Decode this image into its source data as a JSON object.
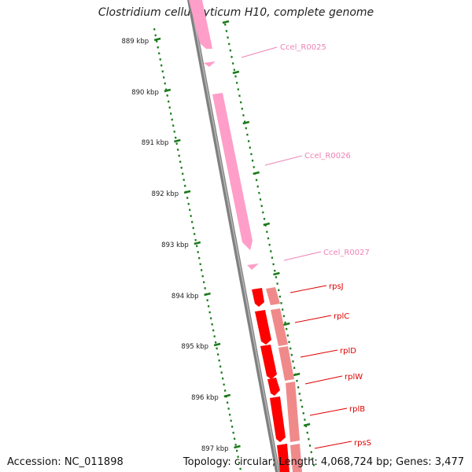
{
  "title": "Clostridium cellulolyticum H10, complete genome",
  "footer": {
    "accession": "Accession: NC_011898",
    "summary": "Topology: circular; Length: 4,068,724 bp; Genes: 3,477"
  },
  "ruler_ticks": [
    "889 kbp",
    "890 kbp",
    "891 kbp",
    "892 kbp",
    "893 kbp",
    "894 kbp",
    "895 kbp",
    "896 kbp",
    "897 kbp"
  ],
  "colors": {
    "rna_gene": "#ff9ec9",
    "protein_gene": "#ff0000",
    "cds": "#f08a8a",
    "backbone": "#808080",
    "ruler": "#1a7a1a",
    "label_rna": "#ee82b4",
    "label_protein": "#e00000"
  },
  "features": [
    {
      "label": "Ccel_R0025",
      "type": "rna"
    },
    {
      "label": "Ccel_R0026",
      "type": "rna"
    },
    {
      "label": "Ccel_R0027",
      "type": "rna"
    },
    {
      "label": "rpsJ",
      "type": "protein"
    },
    {
      "label": "rplC",
      "type": "protein"
    },
    {
      "label": "rplD",
      "type": "protein"
    },
    {
      "label": "rplW",
      "type": "protein"
    },
    {
      "label": "rplB",
      "type": "protein"
    },
    {
      "label": "rpsS",
      "type": "protein"
    }
  ]
}
